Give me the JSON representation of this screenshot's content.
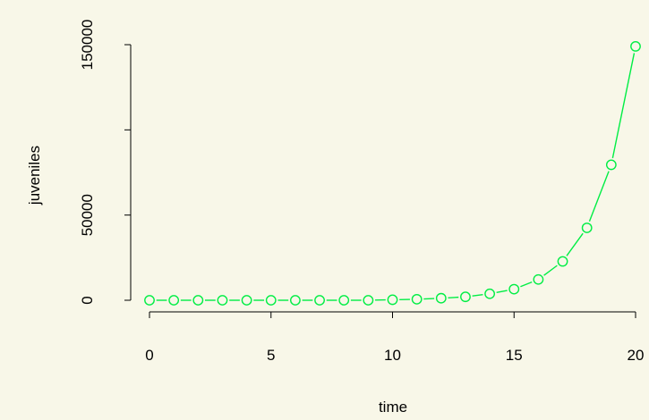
{
  "chart_data": {
    "type": "line",
    "title": "",
    "xlabel": "time",
    "ylabel": "juveniles",
    "x": [
      0,
      1,
      2,
      3,
      4,
      5,
      6,
      7,
      8,
      9,
      10,
      11,
      12,
      13,
      14,
      15,
      16,
      17,
      18,
      19,
      20
    ],
    "series": [
      {
        "values": [
          0,
          0,
          0,
          0,
          0,
          0,
          0,
          0,
          0,
          0,
          300,
          600,
          1200,
          2000,
          3800,
          6500,
          12200,
          22800,
          42500,
          79500,
          149000
        ],
        "color": "#00ee44",
        "style": "points-and-lines"
      }
    ],
    "xticks": [
      0,
      5,
      10,
      15,
      20
    ],
    "xtick_labels": [
      "0",
      "5",
      "10",
      "15",
      "20"
    ],
    "yticks": [
      0,
      50000,
      100000,
      150000
    ],
    "ytick_labels": [
      "0",
      "50000",
      "",
      "150000"
    ],
    "xlim": [
      0,
      20
    ],
    "ylim": [
      0,
      150000
    ],
    "grid": false,
    "background": "#f8f7e8"
  }
}
